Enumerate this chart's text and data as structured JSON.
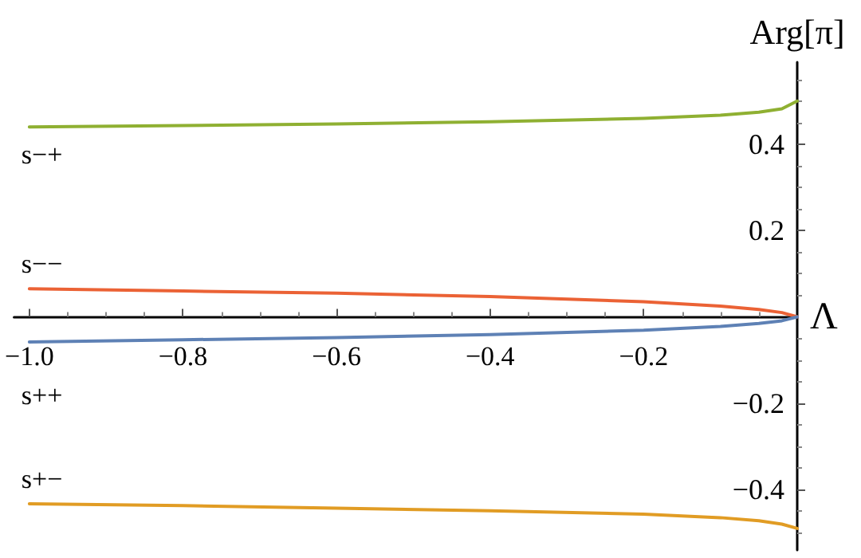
{
  "chart_data": {
    "type": "line",
    "xlabel": "Λ",
    "ylabel": "Arg[π]",
    "xlim": [
      -1.02,
      0
    ],
    "ylim": [
      -0.54,
      0.59
    ],
    "xticks": [
      {
        "value": -1,
        "label": "−1.0"
      },
      {
        "value": -0.8,
        "label": "−0.8"
      },
      {
        "value": -0.6,
        "label": "−0.6"
      },
      {
        "value": -0.4,
        "label": "−0.4"
      },
      {
        "value": -0.2,
        "label": "−0.2"
      }
    ],
    "yticks": [
      {
        "value": -0.4,
        "label": "−0.4"
      },
      {
        "value": -0.2,
        "label": "−0.2"
      },
      0.2,
      0.4
    ],
    "x": [
      -1,
      -0.8,
      -0.6,
      -0.4,
      -0.2,
      -0.1,
      -0.05,
      -0.02,
      0
    ],
    "series": [
      {
        "name": "s−+",
        "color": "#8fb032",
        "values": [
          0.44,
          0.443,
          0.447,
          0.452,
          0.46,
          0.467,
          0.474,
          0.482,
          0.5
        ]
      },
      {
        "name": "s−−",
        "color": "#eb6235",
        "values": [
          0.065,
          0.06,
          0.055,
          0.047,
          0.035,
          0.025,
          0.017,
          0.01,
          0
        ]
      },
      {
        "name": "s++",
        "color": "#5e81b5",
        "values": [
          -0.058,
          -0.053,
          -0.048,
          -0.041,
          -0.031,
          -0.022,
          -0.015,
          -0.009,
          0
        ]
      },
      {
        "name": "s+−",
        "color": "#e19c24",
        "values": [
          -0.433,
          -0.437,
          -0.443,
          -0.449,
          -0.457,
          -0.465,
          -0.472,
          -0.48,
          -0.49
        ]
      }
    ],
    "grid": false,
    "marker": "none",
    "line_style": "solid"
  }
}
